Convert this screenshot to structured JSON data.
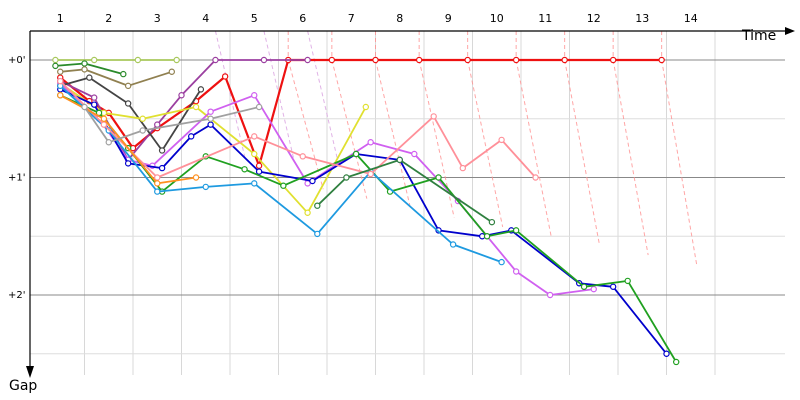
{
  "chart_data": {
    "type": "line",
    "xlabel": "Time",
    "ylabel": "Gap",
    "x_ticks": [
      "1",
      "2",
      "3",
      "4",
      "5",
      "6",
      "7",
      "8",
      "9",
      "10",
      "11",
      "12",
      "13",
      "14"
    ],
    "y_ticks": [
      {
        "value": 0,
        "label": "+0'"
      },
      {
        "value": 1,
        "label": "+1'"
      },
      {
        "value": 2,
        "label": "+2'"
      }
    ],
    "xlim": [
      0.4,
      15
    ],
    "ylim": [
      -0.35,
      2.65
    ],
    "grid": true,
    "series": [
      {
        "color": "#ee1111",
        "points": [
          [
            0.5,
            0.15
          ],
          [
            1.1,
            0.35
          ],
          [
            1.5,
            0.45
          ],
          [
            2,
            0.75
          ],
          [
            2.5,
            0.58
          ],
          [
            3.3,
            0.35
          ],
          [
            3.9,
            0.14
          ],
          [
            4.6,
            0.9
          ],
          [
            5.2,
            0
          ],
          [
            6.1,
            0
          ],
          [
            7,
            0
          ],
          [
            7.9,
            0
          ],
          [
            8.9,
            0
          ],
          [
            9.9,
            0
          ],
          [
            10.9,
            0
          ],
          [
            11.9,
            0
          ],
          [
            12.9,
            0
          ]
        ]
      },
      {
        "color": "#9b3fa0",
        "points": [
          [
            0.5,
            0.18
          ],
          [
            1.2,
            0.32
          ],
          [
            1.9,
            0.85
          ],
          [
            2.5,
            0.55
          ],
          [
            3,
            0.3
          ],
          [
            3.7,
            0
          ],
          [
            4.7,
            0
          ],
          [
            5.6,
            0
          ]
        ]
      },
      {
        "color": "#a8c85c",
        "points": [
          [
            0.4,
            0
          ],
          [
            1.2,
            0
          ],
          [
            2.1,
            0
          ],
          [
            2.9,
            0
          ]
        ]
      },
      {
        "color": "#2a8a2a",
        "points": [
          [
            0.4,
            0.05
          ],
          [
            1,
            0.03
          ],
          [
            1.8,
            0.12
          ]
        ]
      },
      {
        "color": "#908050",
        "points": [
          [
            0.5,
            0.1
          ],
          [
            1,
            0.08
          ],
          [
            1.9,
            0.22
          ],
          [
            2.8,
            0.1
          ]
        ]
      },
      {
        "color": "#444444",
        "points": [
          [
            0.5,
            0.22
          ],
          [
            1.1,
            0.15
          ],
          [
            1.9,
            0.37
          ],
          [
            2.6,
            0.77
          ],
          [
            3.4,
            0.25
          ]
        ]
      },
      {
        "color": "#e0e030",
        "points": [
          [
            0.5,
            0.2
          ],
          [
            1.4,
            0.45
          ],
          [
            2.2,
            0.5
          ],
          [
            3.3,
            0.4
          ],
          [
            4.5,
            0.8
          ],
          [
            5.6,
            1.3
          ],
          [
            6.8,
            0.4
          ]
        ]
      },
      {
        "color": "#d060f0",
        "points": [
          [
            0.5,
            0.2
          ],
          [
            1.3,
            0.5
          ],
          [
            1.9,
            0.85
          ],
          [
            2.4,
            0.9
          ],
          [
            3.6,
            0.44
          ],
          [
            4.5,
            0.3
          ],
          [
            5.6,
            1.05
          ],
          [
            6.9,
            0.7
          ],
          [
            7.8,
            0.8
          ],
          [
            8.7,
            1.2
          ],
          [
            9.9,
            1.8
          ],
          [
            10.6,
            2.0
          ],
          [
            11.5,
            1.95
          ]
        ]
      },
      {
        "color": "#0000cc",
        "points": [
          [
            0.5,
            0.25
          ],
          [
            1.2,
            0.38
          ],
          [
            1.9,
            0.88
          ],
          [
            2.6,
            0.92
          ],
          [
            3.2,
            0.65
          ],
          [
            3.6,
            0.55
          ],
          [
            4.6,
            0.95
          ],
          [
            5.7,
            1.03
          ],
          [
            6.6,
            0.8
          ],
          [
            7.5,
            0.85
          ],
          [
            8.3,
            1.45
          ],
          [
            9.2,
            1.5
          ],
          [
            9.8,
            1.45
          ],
          [
            11.2,
            1.9
          ],
          [
            11.9,
            1.93
          ],
          [
            13.0,
            2.5
          ]
        ]
      },
      {
        "color": "#20a020",
        "points": [
          [
            0.5,
            0.3
          ],
          [
            1.3,
            0.45
          ],
          [
            1.9,
            0.75
          ],
          [
            2.6,
            1.12
          ],
          [
            3.5,
            0.82
          ],
          [
            4.3,
            0.93
          ],
          [
            5.1,
            1.07
          ],
          [
            6.6,
            0.8
          ],
          [
            7.3,
            1.12
          ],
          [
            8.3,
            1.0
          ],
          [
            9.3,
            1.5
          ],
          [
            9.9,
            1.45
          ],
          [
            11.3,
            1.93
          ],
          [
            12.2,
            1.88
          ],
          [
            13.2,
            2.57
          ]
        ]
      },
      {
        "color": "#1e9ae0",
        "points": [
          [
            0.5,
            0.22
          ],
          [
            1.5,
            0.6
          ],
          [
            2.5,
            1.12
          ],
          [
            3.5,
            1.08
          ],
          [
            4.5,
            1.05
          ],
          [
            5.8,
            1.48
          ],
          [
            6.9,
            0.95
          ],
          [
            8.6,
            1.57
          ],
          [
            9.6,
            1.72
          ]
        ]
      },
      {
        "color": "#ff9099",
        "points": [
          [
            0.5,
            0.18
          ],
          [
            1.4,
            0.55
          ],
          [
            2.5,
            1.0
          ],
          [
            4.5,
            0.65
          ],
          [
            5.5,
            0.82
          ],
          [
            6.9,
            0.97
          ],
          [
            8.2,
            0.48
          ],
          [
            8.8,
            0.92
          ],
          [
            9.6,
            0.68
          ],
          [
            10.3,
            1.0
          ]
        ]
      },
      {
        "color": "#ff9020",
        "points": [
          [
            0.5,
            0.3
          ],
          [
            1.4,
            0.5
          ],
          [
            2.5,
            1.05
          ],
          [
            3.3,
            1.0
          ]
        ]
      },
      {
        "color": "#a0a0a0",
        "points": [
          [
            1.0,
            0.4
          ],
          [
            1.5,
            0.7
          ],
          [
            2.2,
            0.6
          ],
          [
            3.6,
            0.5
          ],
          [
            4.6,
            0.4
          ]
        ]
      },
      {
        "color": "#308040",
        "points": [
          [
            5.8,
            1.24
          ],
          [
            6.4,
            1.0
          ],
          [
            7.5,
            0.85
          ],
          [
            9.4,
            1.38
          ]
        ]
      }
    ]
  }
}
